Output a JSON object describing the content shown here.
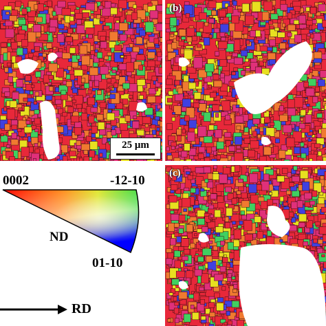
{
  "panels": {
    "a": {
      "label": "",
      "scale_bar": "25 μm"
    },
    "b": {
      "label": "(b)"
    },
    "c": {
      "label": "(c)"
    }
  },
  "legend": {
    "pole_top_left": "0002",
    "pole_top_right": "-12-10",
    "pole_bottom": "01-10",
    "normal_direction": "ND",
    "rolling_direction": "RD"
  },
  "colors": {
    "grain_primary": "#e8283a",
    "grain_magenta": "#e0307a",
    "grain_orange": "#f07a30",
    "grain_yellow": "#e8e020",
    "grain_green": "#40d060",
    "grain_blue": "#4040e0",
    "boundary": "#3a1010",
    "void": "#ffffff"
  }
}
